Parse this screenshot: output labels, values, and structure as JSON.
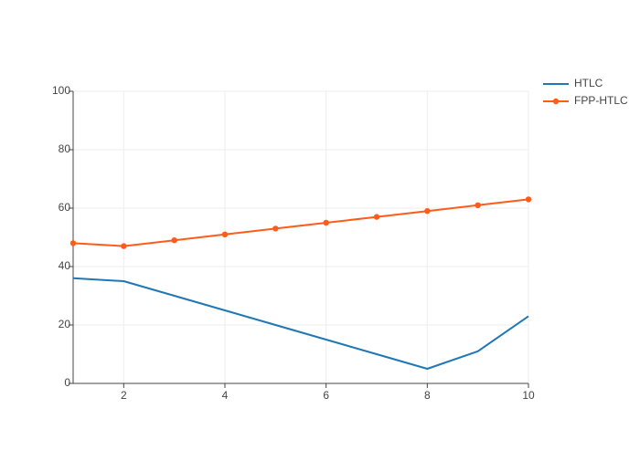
{
  "chart_data": {
    "type": "line",
    "title": "",
    "xlabel": "",
    "ylabel": "",
    "xlim": [
      1,
      10
    ],
    "ylim": [
      0,
      100
    ],
    "x_ticks": [
      2,
      4,
      6,
      8,
      10
    ],
    "y_ticks": [
      0,
      20,
      40,
      60,
      80,
      100
    ],
    "grid": true,
    "legend_position": "top-right",
    "series": [
      {
        "name": "HTLC",
        "color": "#1f77b4",
        "markers": false,
        "x": [
          1,
          2,
          3,
          4,
          5,
          6,
          7,
          8,
          9,
          10
        ],
        "values": [
          36,
          35,
          30,
          25,
          20,
          15,
          10,
          5,
          11,
          23
        ]
      },
      {
        "name": "FPP-HTLC",
        "color": "#ff5c1a",
        "markers": true,
        "x": [
          1,
          2,
          3,
          4,
          5,
          6,
          7,
          8,
          9,
          10
        ],
        "values": [
          48,
          47,
          49,
          51,
          53,
          55,
          57,
          59,
          61,
          63
        ]
      }
    ]
  }
}
